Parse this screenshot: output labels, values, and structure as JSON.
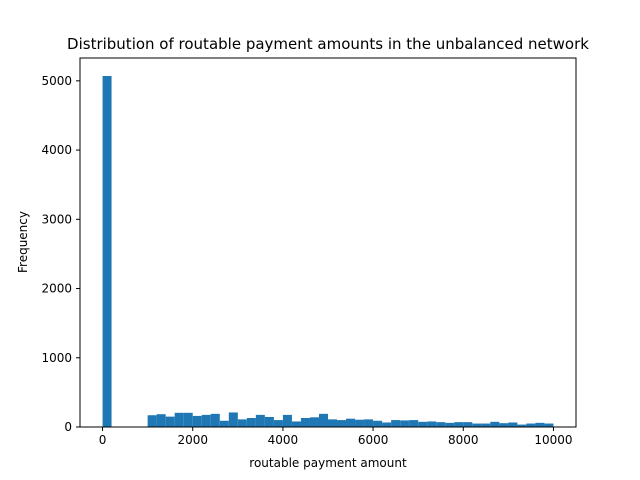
{
  "chart_data": {
    "type": "bar",
    "title": "Distribution of routable payment amounts in the unbalanced network",
    "xlabel": "routable payment amount",
    "ylabel": "Frequency",
    "xlim": [
      -500,
      10500
    ],
    "ylim": [
      0,
      5330
    ],
    "xticks": [
      0,
      2000,
      4000,
      6000,
      8000,
      10000
    ],
    "yticks": [
      0,
      1000,
      2000,
      3000,
      4000,
      5000
    ],
    "bin_width": 200,
    "bin_starts": [
      0,
      200,
      400,
      600,
      800,
      1000,
      1200,
      1400,
      1600,
      1800,
      2000,
      2200,
      2400,
      2600,
      2800,
      3000,
      3200,
      3400,
      3600,
      3800,
      4000,
      4200,
      4400,
      4600,
      4800,
      5000,
      5200,
      5400,
      5600,
      5800,
      6000,
      6200,
      6400,
      6600,
      6800,
      7000,
      7200,
      7400,
      7600,
      7800,
      8000,
      8200,
      8400,
      8600,
      8800,
      9000,
      9200,
      9400,
      9600,
      9800
    ],
    "values": [
      5070,
      0,
      0,
      0,
      0,
      170,
      185,
      150,
      205,
      205,
      160,
      175,
      190,
      90,
      210,
      110,
      130,
      175,
      145,
      100,
      175,
      80,
      130,
      140,
      190,
      110,
      100,
      120,
      105,
      110,
      90,
      65,
      100,
      95,
      100,
      75,
      80,
      70,
      60,
      70,
      70,
      50,
      50,
      75,
      55,
      65,
      35,
      50,
      60,
      50
    ],
    "bar_color": "#1f77b4",
    "grid": false,
    "legend": "none"
  }
}
